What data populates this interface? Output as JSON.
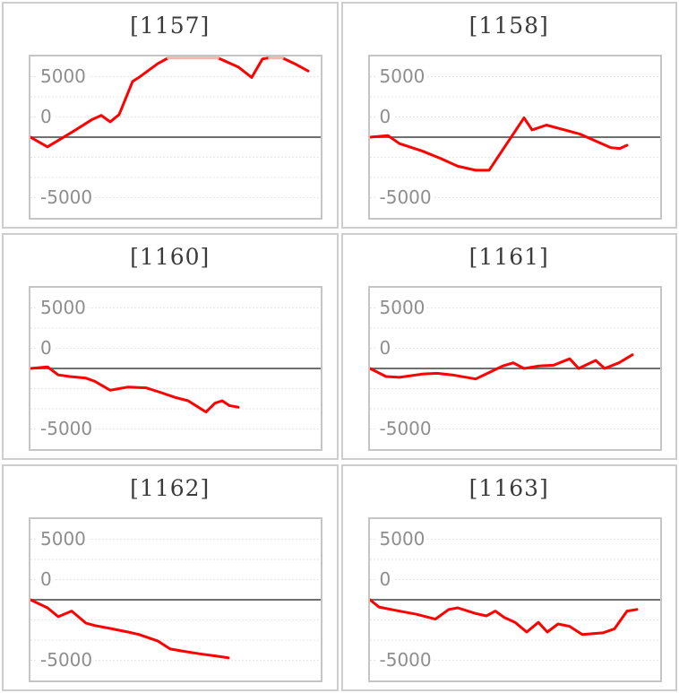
{
  "page": {
    "background": "#ffffff"
  },
  "axis": {
    "tick_labels": [
      "5000",
      "0",
      "-5000"
    ],
    "baseline_note": "all series start at the dark solid zero line",
    "gridline_interval": 2500,
    "ylim": [
      -10000,
      10000
    ]
  },
  "colors": {
    "series_red": "#ff0000",
    "clipped_segment_pink": "#f0b9b3",
    "zero_line": "#6f6f6f",
    "gridline": "#dcdcdc",
    "plot_border": "#c5c5c5",
    "panel_border": "#cdcdcd",
    "axis_label": "#8e8e8e",
    "title_text": "#3b3b3b"
  },
  "chart_data": [
    {
      "type": "line",
      "title": "[1157]",
      "x_scale": "plot pixels 0-324",
      "y_scale": "units, 0 = solid baseline, clipped above +10000",
      "points": [
        [
          0,
          0
        ],
        [
          19,
          -1200
        ],
        [
          49,
          800
        ],
        [
          69,
          2200
        ],
        [
          79,
          2700
        ],
        [
          89,
          1900
        ],
        [
          99,
          2800
        ],
        [
          114,
          6900
        ],
        [
          121,
          7400
        ],
        [
          142,
          9100
        ],
        [
          154,
          10300
        ],
        [
          209,
          10300
        ],
        [
          232,
          8700
        ],
        [
          247,
          7400
        ],
        [
          259,
          9700
        ],
        [
          267,
          10300
        ],
        [
          281,
          10300
        ],
        [
          295,
          9100
        ],
        [
          310,
          8200
        ]
      ]
    },
    {
      "type": "line",
      "title": "[1158]",
      "x_scale": "plot pixels 0-324",
      "y_scale": "units, 0 = solid baseline",
      "points": [
        [
          0,
          0
        ],
        [
          20,
          200
        ],
        [
          33,
          -800
        ],
        [
          58,
          -1700
        ],
        [
          78,
          -2600
        ],
        [
          98,
          -3600
        ],
        [
          118,
          -4100
        ],
        [
          133,
          -4100
        ],
        [
          172,
          2400
        ],
        [
          181,
          900
        ],
        [
          197,
          1500
        ],
        [
          234,
          400
        ],
        [
          269,
          -1300
        ],
        [
          279,
          -1400
        ],
        [
          287,
          -1000
        ]
      ]
    },
    {
      "type": "line",
      "title": "[1160]",
      "x_scale": "plot pixels 0-324",
      "y_scale": "units, 0 = solid baseline",
      "points": [
        [
          0,
          0
        ],
        [
          19,
          200
        ],
        [
          31,
          -800
        ],
        [
          44,
          -1000
        ],
        [
          62,
          -1200
        ],
        [
          72,
          -1600
        ],
        [
          89,
          -2700
        ],
        [
          109,
          -2300
        ],
        [
          129,
          -2400
        ],
        [
          146,
          -3000
        ],
        [
          162,
          -3600
        ],
        [
          176,
          -4000
        ],
        [
          186,
          -4700
        ],
        [
          196,
          -5400
        ],
        [
          206,
          -4300
        ],
        [
          214,
          -4000
        ],
        [
          222,
          -4600
        ],
        [
          232,
          -4800
        ]
      ]
    },
    {
      "type": "line",
      "title": "[1161]",
      "x_scale": "plot pixels 0-324",
      "y_scale": "units, 0 = solid baseline",
      "points": [
        [
          0,
          0
        ],
        [
          18,
          -1000
        ],
        [
          33,
          -1100
        ],
        [
          58,
          -700
        ],
        [
          75,
          -600
        ],
        [
          92,
          -800
        ],
        [
          118,
          -1300
        ],
        [
          135,
          -400
        ],
        [
          148,
          300
        ],
        [
          160,
          700
        ],
        [
          172,
          0
        ],
        [
          188,
          300
        ],
        [
          205,
          400
        ],
        [
          223,
          1200
        ],
        [
          233,
          0
        ],
        [
          252,
          1000
        ],
        [
          262,
          0
        ],
        [
          278,
          700
        ],
        [
          293,
          1700
        ]
      ]
    },
    {
      "type": "line",
      "title": "[1162]",
      "x_scale": "plot pixels 0-324",
      "y_scale": "units, 0 = solid baseline",
      "points": [
        [
          0,
          0
        ],
        [
          19,
          -1000
        ],
        [
          31,
          -2100
        ],
        [
          46,
          -1400
        ],
        [
          62,
          -2900
        ],
        [
          72,
          -3200
        ],
        [
          91,
          -3600
        ],
        [
          109,
          -4000
        ],
        [
          121,
          -4300
        ],
        [
          142,
          -5100
        ],
        [
          156,
          -6100
        ],
        [
          172,
          -6400
        ],
        [
          189,
          -6700
        ],
        [
          209,
          -7000
        ],
        [
          221,
          -7200
        ]
      ]
    },
    {
      "type": "line",
      "title": "[1163]",
      "x_scale": "plot pixels 0-324",
      "y_scale": "units, 0 = solid baseline",
      "points": [
        [
          0,
          0
        ],
        [
          10,
          -900
        ],
        [
          28,
          -1300
        ],
        [
          52,
          -1800
        ],
        [
          73,
          -2400
        ],
        [
          88,
          -1200
        ],
        [
          98,
          -1000
        ],
        [
          118,
          -1700
        ],
        [
          130,
          -2000
        ],
        [
          140,
          -1400
        ],
        [
          150,
          -2200
        ],
        [
          162,
          -2800
        ],
        [
          175,
          -4000
        ],
        [
          188,
          -2800
        ],
        [
          198,
          -4000
        ],
        [
          210,
          -3000
        ],
        [
          223,
          -3300
        ],
        [
          237,
          -4300
        ],
        [
          260,
          -4100
        ],
        [
          273,
          -3600
        ],
        [
          287,
          -1400
        ],
        [
          298,
          -1200
        ]
      ]
    }
  ]
}
